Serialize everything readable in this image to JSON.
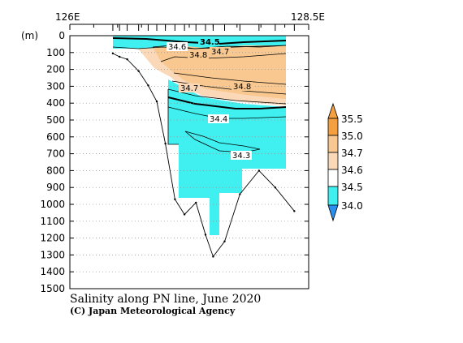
{
  "chart_data": {
    "type": "heatmap",
    "title": "Salinity along PN line, June 2020",
    "credit": "(C) Japan Meteorological Agency",
    "x_ticks": [
      "126E",
      "128.5E"
    ],
    "xlim": [
      126,
      128.5
    ],
    "y_unit": "(m)",
    "ylim": [
      0,
      1500
    ],
    "y_ticks": [
      0,
      100,
      200,
      300,
      400,
      500,
      600,
      700,
      800,
      900,
      1000,
      1100,
      1200,
      1300,
      1400,
      1500
    ],
    "grid": true,
    "colorbar": {
      "labels": [
        "35.5",
        "35.0",
        "34.7",
        "34.6",
        "34.5",
        "34.0"
      ],
      "colors": [
        "#f4a040",
        "#f8c890",
        "#fad8b8",
        "#ffffff",
        "#40f0f0",
        "#2b8ff0"
      ]
    },
    "contour_labels": [
      "34.5",
      "34.6",
      "34.8",
      "34.7",
      "34.7",
      "34.8",
      "34.4",
      "34.3"
    ],
    "station_bottom": {
      "lon": [
        126.45,
        126.52,
        126.6,
        126.72,
        126.82,
        126.91,
        127.0,
        127.1,
        127.2,
        127.32,
        127.42,
        127.5,
        127.62,
        127.78,
        127.98,
        128.15,
        128.35
      ],
      "depth": [
        105,
        125,
        140,
        210,
        295,
        390,
        640,
        970,
        1060,
        990,
        1180,
        1310,
        1220,
        940,
        800,
        900,
        1040
      ]
    },
    "data_region": {
      "lon": [
        126.45,
        128.35
      ],
      "max_depth": [
        105,
        125,
        140,
        210,
        295,
        390,
        640,
        970,
        1060,
        990,
        1180,
        1310,
        1220,
        940,
        800,
        900,
        1040
      ]
    }
  }
}
